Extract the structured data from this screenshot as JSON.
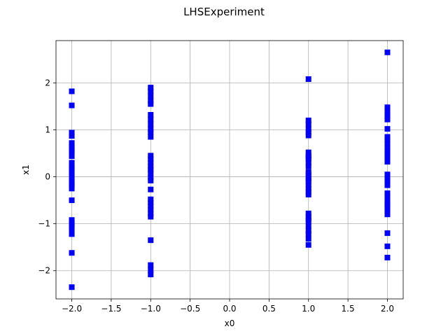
{
  "chart_data": {
    "type": "scatter",
    "title": "LHSExperiment",
    "xlabel": "x0",
    "ylabel": "x1",
    "xlim": [
      -2.2,
      2.2
    ],
    "ylim": [
      -2.6,
      2.9
    ],
    "xticks": [
      -2.0,
      -1.5,
      -1.0,
      -0.5,
      0.0,
      0.5,
      1.0,
      1.5,
      2.0
    ],
    "xtick_labels": [
      "−2.0",
      "−1.5",
      "−1.0",
      "−0.5",
      "0.0",
      "0.5",
      "1.0",
      "1.5",
      "2.0"
    ],
    "yticks": [
      -2,
      -1,
      0,
      1,
      2
    ],
    "ytick_labels": [
      "−2",
      "−1",
      "0",
      "1",
      "2"
    ],
    "grid": true,
    "marker": "square",
    "color": "#0000ff",
    "series": [
      {
        "x": [
          -2,
          -2,
          -2,
          -2,
          -2,
          -2,
          -2,
          -2,
          -2,
          -2,
          -2,
          -2,
          -2,
          -2,
          -2,
          -2,
          -2,
          -2,
          -2,
          -2,
          -2,
          -2,
          -2,
          -2,
          -2,
          -2,
          -2,
          -2,
          -2,
          -2
        ],
        "y": [
          1.82,
          1.52,
          0.94,
          0.87,
          0.72,
          0.64,
          0.58,
          0.51,
          0.44,
          0.22,
          0.15,
          0.08,
          0.02,
          -0.05,
          -0.12,
          -0.18,
          -0.25,
          -0.5,
          -0.92,
          -0.98,
          -1.05,
          -1.12,
          -1.22,
          -1.62,
          -2.35,
          0.3,
          0.56,
          0.2,
          -0.15,
          -1.0
        ]
      },
      {
        "x": [
          -1,
          -1,
          -1,
          -1,
          -1,
          -1,
          -1,
          -1,
          -1,
          -1,
          -1,
          -1,
          -1,
          -1,
          -1,
          -1,
          -1,
          -1,
          -1,
          -1,
          -1,
          -1,
          -1,
          -1,
          -1,
          -1,
          -1,
          -1,
          -1,
          -1
        ],
        "y": [
          1.9,
          1.82,
          1.72,
          1.62,
          1.55,
          1.32,
          1.22,
          1.12,
          1.02,
          0.95,
          0.85,
          0.45,
          0.38,
          0.3,
          0.22,
          0.15,
          0.08,
          -0.02,
          -0.08,
          -0.27,
          -0.48,
          -0.55,
          -0.62,
          -0.7,
          -0.78,
          -0.85,
          -1.35,
          -1.88,
          -1.98,
          -2.08
        ]
      },
      {
        "x": [
          1,
          1,
          1,
          1,
          1,
          1,
          1,
          1,
          1,
          1,
          1,
          1,
          1,
          1,
          1,
          1,
          1,
          1,
          1,
          1,
          1,
          1,
          1,
          1,
          1,
          1,
          1,
          1,
          1,
          1
        ],
        "y": [
          2.08,
          1.2,
          1.12,
          1.02,
          0.95,
          0.88,
          0.52,
          0.45,
          0.38,
          0.3,
          0.22,
          0.05,
          -0.02,
          -0.1,
          -0.18,
          -0.25,
          -0.32,
          -0.38,
          -0.78,
          -0.85,
          -0.95,
          -1.05,
          -1.15,
          -1.22,
          -1.32,
          -1.45,
          0.1,
          -0.05,
          0.42,
          -0.9
        ]
      },
      {
        "x": [
          2,
          2,
          2,
          2,
          2,
          2,
          2,
          2,
          2,
          2,
          2,
          2,
          2,
          2,
          2,
          2,
          2,
          2,
          2,
          2,
          2,
          2,
          2,
          2,
          2,
          2,
          2,
          2,
          2,
          2
        ],
        "y": [
          2.65,
          1.48,
          1.4,
          1.32,
          1.22,
          1.02,
          0.78,
          0.7,
          0.62,
          0.55,
          0.48,
          0.4,
          0.32,
          -0.02,
          -0.1,
          -0.18,
          -0.42,
          -0.5,
          -0.58,
          -0.65,
          -0.72,
          -0.8,
          -1.2,
          -1.48,
          -1.72,
          0.85,
          0.05,
          -0.35,
          1.28,
          -0.6
        ]
      }
    ]
  }
}
